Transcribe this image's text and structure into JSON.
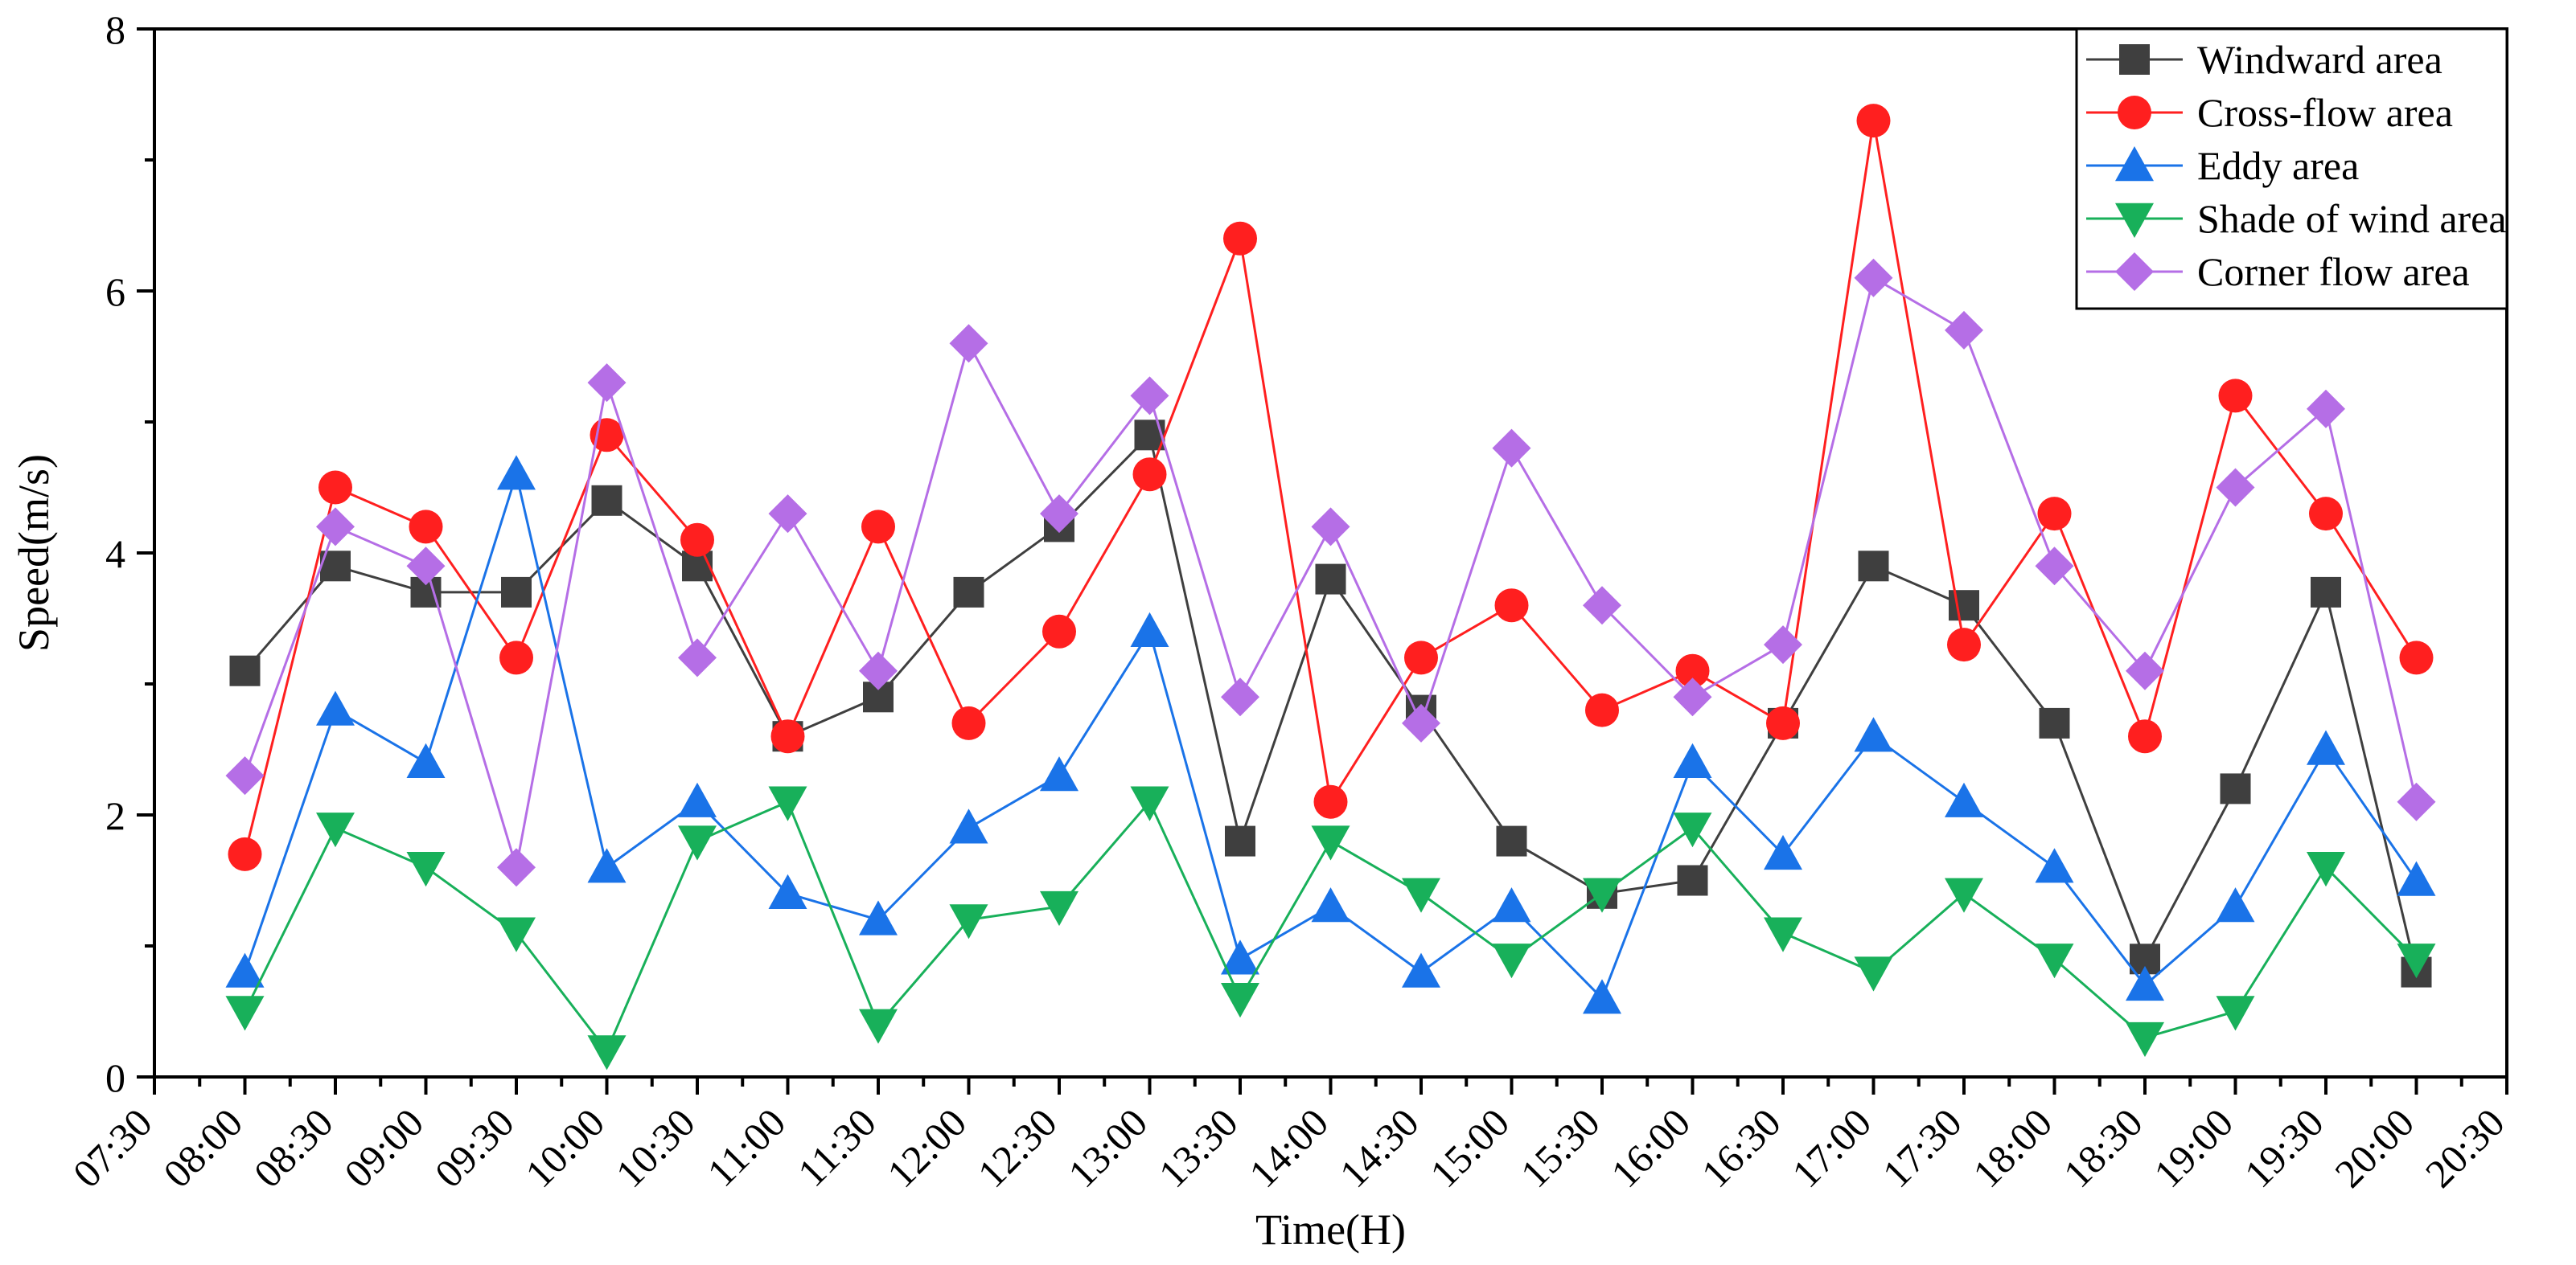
{
  "chart_data": {
    "type": "line",
    "title": "",
    "xlabel": "Time(H)",
    "ylabel": "Speed(m/s)",
    "x": [
      "08:00",
      "08:30",
      "09:00",
      "09:30",
      "10:00",
      "10:30",
      "11:00",
      "11:30",
      "12:00",
      "12:30",
      "13:00",
      "13:30",
      "14:00",
      "14:30",
      "15:00",
      "15:30",
      "16:00",
      "16:30",
      "17:00",
      "17:30",
      "18:00",
      "18:30",
      "19:00",
      "19:30",
      "20:00"
    ],
    "x_tick_labels": [
      "07:30",
      "08:00",
      "08:30",
      "09:00",
      "09:30",
      "10:00",
      "10:30",
      "11:00",
      "11:30",
      "12:00",
      "12:30",
      "13:00",
      "13:30",
      "14:00",
      "14:30",
      "15:00",
      "15:30",
      "16:00",
      "16:30",
      "17:00",
      "17:30",
      "18:00",
      "18:30",
      "19:00",
      "19:30",
      "20:00",
      "20:30"
    ],
    "xlim_index": [
      -1,
      25
    ],
    "ylim": [
      0,
      8
    ],
    "y_ticks": [
      0,
      2,
      4,
      6,
      8
    ],
    "y_tick_labels": [
      "0",
      "2",
      "4",
      "6",
      "8"
    ],
    "legend_position": "top-right",
    "grid": false,
    "series": [
      {
        "name": "Windward area",
        "color": "#3f3f3f",
        "marker": "square",
        "values": [
          3.1,
          3.9,
          3.7,
          3.7,
          4.4,
          3.9,
          2.6,
          2.9,
          3.7,
          4.2,
          4.9,
          1.8,
          3.8,
          2.8,
          1.8,
          1.4,
          1.5,
          2.7,
          3.9,
          3.6,
          2.7,
          0.9,
          2.2,
          3.7,
          0.8
        ]
      },
      {
        "name": "Cross-flow area",
        "color": "#ff1f1f",
        "marker": "circle",
        "values": [
          1.7,
          4.5,
          4.2,
          3.2,
          4.9,
          4.1,
          2.6,
          4.2,
          2.7,
          3.4,
          4.6,
          6.4,
          2.1,
          3.2,
          3.6,
          2.8,
          3.1,
          2.7,
          7.3,
          3.3,
          4.3,
          2.6,
          5.2,
          4.3,
          3.2
        ]
      },
      {
        "name": "Eddy area",
        "color": "#1a73e8",
        "marker": "triangle-up",
        "values": [
          0.8,
          2.8,
          2.4,
          4.6,
          1.6,
          2.1,
          1.4,
          1.2,
          1.9,
          2.3,
          3.4,
          0.9,
          1.3,
          0.8,
          1.3,
          0.6,
          2.4,
          1.7,
          2.6,
          2.1,
          1.6,
          0.7,
          1.3,
          2.5,
          1.5
        ]
      },
      {
        "name": "Shade of wind area",
        "color": "#18b05a",
        "marker": "triangle-down",
        "values": [
          0.5,
          1.9,
          1.6,
          1.1,
          0.2,
          1.8,
          2.1,
          0.4,
          1.2,
          1.3,
          2.1,
          0.6,
          1.8,
          1.4,
          0.9,
          1.4,
          1.9,
          1.1,
          0.8,
          1.4,
          0.9,
          0.3,
          0.5,
          1.6,
          0.9
        ]
      },
      {
        "name": "Corner flow area",
        "color": "#b56ee6",
        "marker": "diamond",
        "values": [
          2.3,
          4.2,
          3.9,
          1.6,
          5.3,
          3.2,
          4.3,
          3.1,
          5.6,
          4.3,
          5.2,
          2.9,
          4.2,
          2.7,
          4.8,
          3.6,
          2.9,
          3.3,
          6.1,
          5.7,
          3.9,
          3.1,
          4.5,
          5.1,
          2.1
        ]
      }
    ]
  }
}
